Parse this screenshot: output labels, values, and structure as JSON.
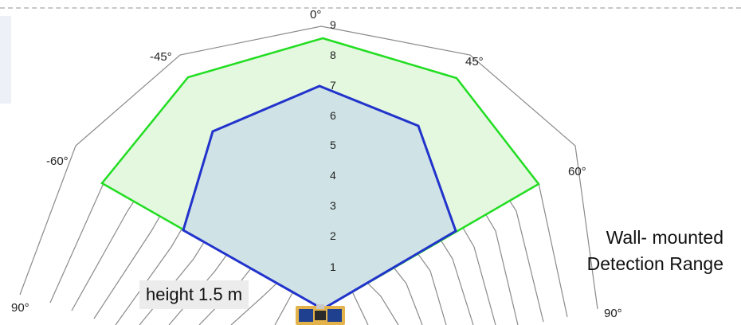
{
  "diagram": {
    "angle_labels": {
      "a0": "0°",
      "a_m45": "-45°",
      "a_p45": "45°",
      "a_m60": "-60°",
      "a_p60": "60°",
      "a_m90": "90°",
      "a_p90": "90°"
    },
    "ring_labels": [
      "1",
      "2",
      "3",
      "4",
      "5",
      "6",
      "7",
      "8",
      "9"
    ],
    "caption_line1": "Wall- mounted",
    "caption_line2": "Detection Range",
    "height_label": "height 1.5 m",
    "colors": {
      "grid": "#8a8a8a",
      "outer_range": "#22dd22",
      "outer_fill": "#e4f8df",
      "inner_range": "#2233cc",
      "inner_fill": "#cfe3e6"
    },
    "icons": [
      "sensor-icon"
    ]
  }
}
